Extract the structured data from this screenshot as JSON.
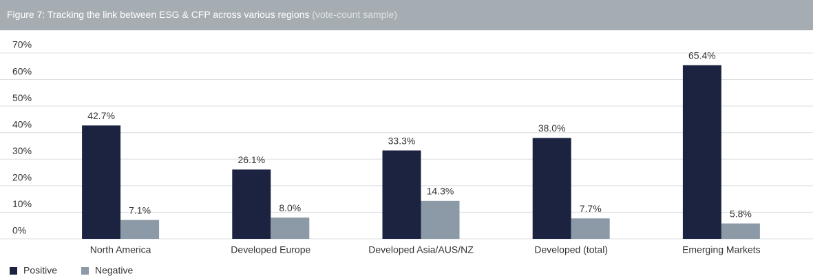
{
  "chart_data": {
    "type": "bar",
    "title": "Figure 7: Tracking the link between ESG & CFP across various regions",
    "subtitle": "(vote-count sample)",
    "categories": [
      "North America",
      "Developed Europe",
      "Developed Asia/AUS/NZ",
      "Developed (total)",
      "Emerging Markets"
    ],
    "series": [
      {
        "name": "Positive",
        "color": "#1b2340",
        "values": [
          42.7,
          26.1,
          33.3,
          38.0,
          65.4
        ],
        "value_labels": [
          "42.7%",
          "26.1%",
          "33.3%",
          "38.0%",
          "65.4%"
        ]
      },
      {
        "name": "Negative",
        "color": "#8b9aa6",
        "values": [
          7.1,
          8.0,
          14.3,
          7.7,
          5.8
        ],
        "value_labels": [
          "7.1%",
          "8.0%",
          "14.3%",
          "7.7%",
          "5.8%"
        ]
      }
    ],
    "ylim": [
      0,
      70
    ],
    "yticks": [
      {
        "value": 0,
        "label": "0%"
      },
      {
        "value": 10,
        "label": "10%"
      },
      {
        "value": 20,
        "label": "20%"
      },
      {
        "value": 30,
        "label": "30%"
      },
      {
        "value": 40,
        "label": "40%"
      },
      {
        "value": 50,
        "label": "50%"
      },
      {
        "value": 60,
        "label": "60%"
      },
      {
        "value": 70,
        "label": "70%"
      }
    ],
    "grid": true,
    "legend": "bottom-left"
  }
}
